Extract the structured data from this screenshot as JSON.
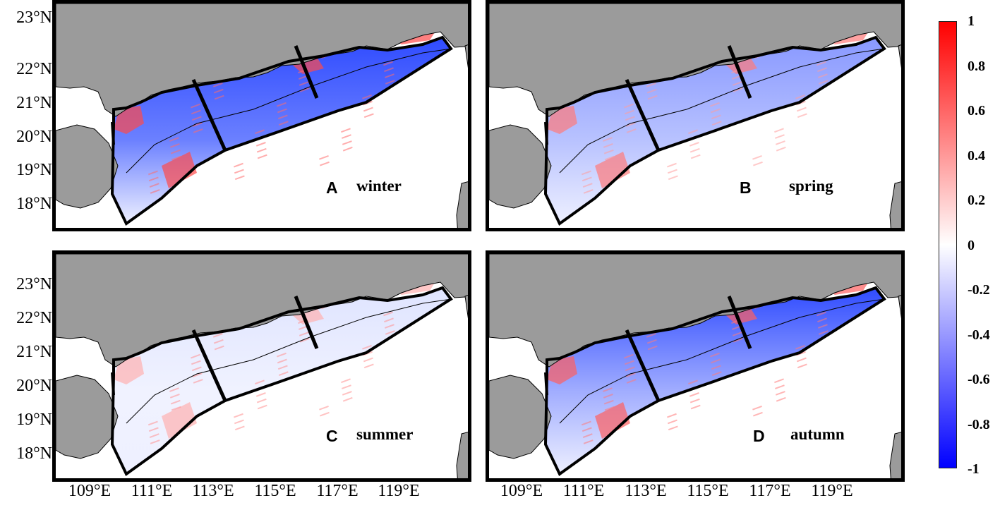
{
  "panels": [
    {
      "letter": "A",
      "season": "winter",
      "tone": "winter"
    },
    {
      "letter": "B",
      "season": "spring",
      "tone": "spring"
    },
    {
      "letter": "C",
      "season": "summer",
      "tone": "summer"
    },
    {
      "letter": "D",
      "season": "autumn",
      "tone": "autumn"
    }
  ],
  "latitude_labels": [
    "23°N",
    "22°N",
    "21°N",
    "20°N",
    "19°N",
    "18°N"
  ],
  "longitude_labels": [
    "109°E",
    "111°E",
    "113°E",
    "115°E",
    "117°E",
    "119°E"
  ],
  "colorbar": {
    "ticks": [
      "1",
      "0.8",
      "0.6",
      "0.4",
      "0.2",
      "0",
      "-0.2",
      "-0.4",
      "-0.6",
      "-0.8",
      "-1"
    ],
    "max_color": "#ff0000",
    "mid_color": "#ffffff",
    "min_color": "#0000ff"
  },
  "colors": {
    "land": "#9b9b9b",
    "ocean": "#ffffff",
    "region_outline": "#000000"
  }
}
